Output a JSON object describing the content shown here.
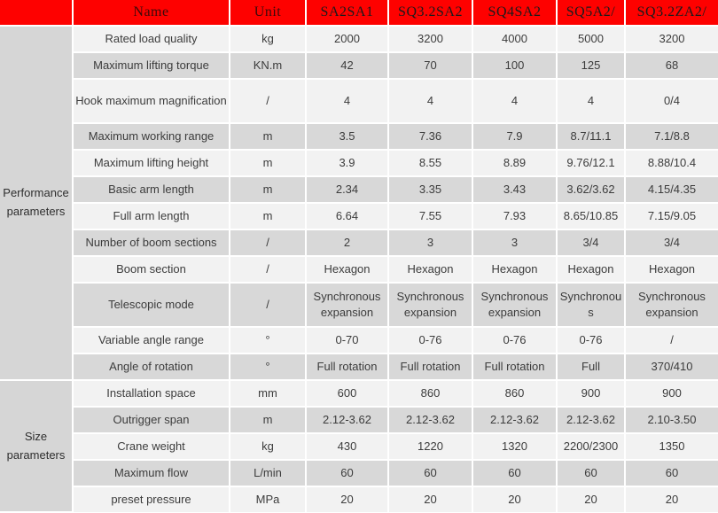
{
  "colors": {
    "header_bg": "#fe0100",
    "header_label_text": "#3c0a0a",
    "header_model_text": "#1b1b1b",
    "row_light": "#f2f2f2",
    "row_dark": "#d8d8d8",
    "group_bg": "#d6d6d6",
    "body_text": "#3c3c3c",
    "grid": "#ffffff"
  },
  "header": {
    "corner": "",
    "name": "Name",
    "unit": "Unit",
    "models": [
      "SA2SA1",
      "SQ3.2SA2",
      "SQ4SA2",
      "SQ5A2/",
      "SQ3.2ZA2/"
    ]
  },
  "sections": [
    {
      "label": "Performance parameters",
      "rows": [
        {
          "name": "Rated load quality",
          "unit": "kg",
          "tall": false,
          "values": [
            "2000",
            "3200",
            "4000",
            "5000",
            "3200"
          ]
        },
        {
          "name": "Maximum lifting torque",
          "unit": "KN.m",
          "tall": false,
          "values": [
            "42",
            "70",
            "100",
            "125",
            "68"
          ]
        },
        {
          "name": "Hook maximum magnification",
          "unit": "/",
          "tall": true,
          "values": [
            "4",
            "4",
            "4",
            "4",
            "0/4"
          ]
        },
        {
          "name": "Maximum working range",
          "unit": "m",
          "tall": false,
          "values": [
            "3.5",
            "7.36",
            "7.9",
            "8.7/11.1",
            "7.1/8.8"
          ]
        },
        {
          "name": "Maximum lifting height",
          "unit": "m",
          "tall": false,
          "values": [
            "3.9",
            "8.55",
            "8.89",
            "9.76/12.1",
            "8.88/10.4"
          ]
        },
        {
          "name": "Basic arm length",
          "unit": "m",
          "tall": false,
          "values": [
            "2.34",
            "3.35",
            "3.43",
            "3.62/3.62",
            "4.15/4.35"
          ]
        },
        {
          "name": "Full arm length",
          "unit": "m",
          "tall": false,
          "values": [
            "6.64",
            "7.55",
            "7.93",
            "8.65/10.85",
            "7.15/9.05"
          ]
        },
        {
          "name": "Number of boom sections",
          "unit": "/",
          "tall": false,
          "values": [
            "2",
            "3",
            "3",
            "3/4",
            "3/4"
          ]
        },
        {
          "name": "Boom section",
          "unit": "/",
          "tall": false,
          "values": [
            "Hexagon",
            "Hexagon",
            "Hexagon",
            "Hexagon",
            "Hexagon"
          ]
        },
        {
          "name": "Telescopic mode",
          "unit": "/",
          "tall": true,
          "values": [
            "Synchronous expansion",
            "Synchronous expansion",
            "Synchronous expansion",
            "Synchronous",
            "Synchronous expansion"
          ]
        },
        {
          "name": "Variable angle range",
          "unit": "°",
          "tall": false,
          "values": [
            "0-70",
            "0-76",
            "0-76",
            "0-76",
            "/"
          ]
        },
        {
          "name": "Angle of rotation",
          "unit": "°",
          "tall": false,
          "values": [
            "Full rotation",
            "Full rotation",
            "Full rotation",
            "Full",
            "370/410"
          ]
        }
      ]
    },
    {
      "label": "Size parameters",
      "rows": [
        {
          "name": "Installation space",
          "unit": "mm",
          "tall": false,
          "values": [
            "600",
            "860",
            "860",
            "900",
            "900"
          ]
        },
        {
          "name": "Outrigger span",
          "unit": "m",
          "tall": false,
          "values": [
            "2.12-3.62",
            "2.12-3.62",
            "2.12-3.62",
            "2.12-3.62",
            "2.10-3.50"
          ]
        },
        {
          "name": "Crane weight",
          "unit": "kg",
          "tall": false,
          "values": [
            "430",
            "1220",
            "1320",
            "2200/2300",
            "1350"
          ]
        },
        {
          "name": "Maximum flow",
          "unit": "L/min",
          "tall": false,
          "values": [
            "60",
            "60",
            "60",
            "60",
            "60"
          ]
        },
        {
          "name": "preset pressure",
          "unit": "MPa",
          "tall": false,
          "values": [
            "20",
            "20",
            "20",
            "20",
            "20"
          ]
        }
      ]
    }
  ]
}
